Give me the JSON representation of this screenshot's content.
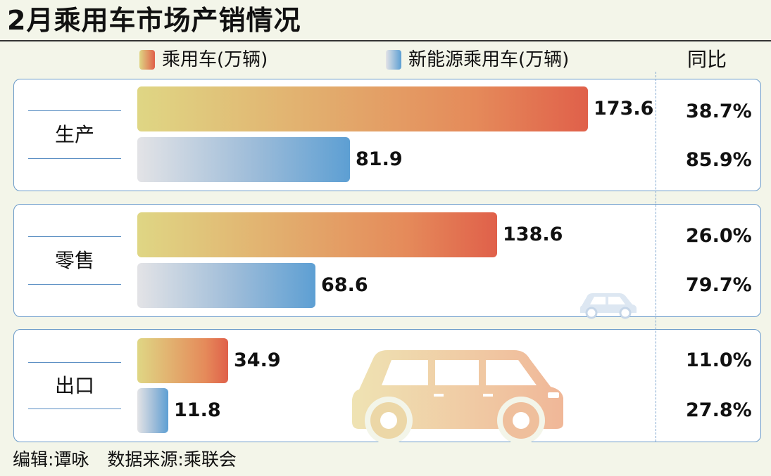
{
  "title": "2月乘用车市场产销情况",
  "legend": {
    "car_label": "乘用车(万辆)",
    "nev_label": "新能源乘用车(万辆)",
    "yoy_header": "同比"
  },
  "colors": {
    "car_start": "#dfd684",
    "car_end": "#e0604a",
    "nev_start": "#e3e3e6",
    "nev_end": "#5d9fd3",
    "panel_border": "#6a9ac9"
  },
  "chart_data": {
    "type": "bar",
    "orientation": "horizontal",
    "categories": [
      "生产",
      "零售",
      "出口"
    ],
    "series": [
      {
        "name": "乘用车(万辆)",
        "values": [
          173.6,
          138.6,
          34.9
        ],
        "yoy": [
          "38.7%",
          "26.0%",
          "11.0%"
        ]
      },
      {
        "name": "新能源乘用车(万辆)",
        "values": [
          81.9,
          68.6,
          11.8
        ],
        "yoy": [
          "85.9%",
          "79.7%",
          "27.8%"
        ]
      }
    ],
    "value_labels": {
      "car": [
        "173.6",
        "138.6",
        "34.9"
      ],
      "nev": [
        "81.9",
        "68.6",
        "11.8"
      ]
    },
    "xlim": [
      0,
      173.6
    ]
  },
  "footer": {
    "editor": "编辑:谭咏",
    "source": "数据来源:乘联会"
  },
  "decorations": [
    "car-icon",
    "suv-illustration"
  ]
}
